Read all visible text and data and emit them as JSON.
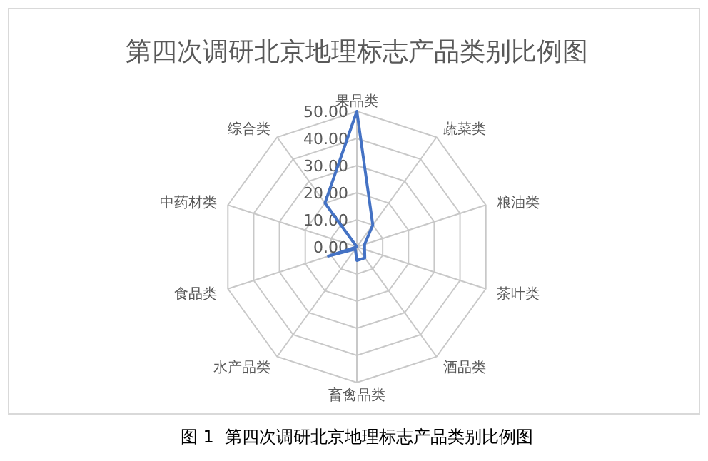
{
  "chart_data": {
    "type": "radar",
    "title": "第四次调研北京地理标志产品类别比例图",
    "categories": [
      "果品类",
      "蔬菜类",
      "粮油类",
      "茶叶类",
      "酒品类",
      "畜禽品类",
      "水产品类",
      "食品类",
      "中药材类",
      "综合类"
    ],
    "series": [
      {
        "color": "#4472c4",
        "values": [
          50,
          10,
          3,
          3,
          5,
          5,
          1,
          11,
          0,
          20
        ]
      }
    ],
    "ylim": [
      0,
      50
    ],
    "yticks": [
      {
        "value": 0,
        "label": "0.00"
      },
      {
        "value": 10,
        "label": "10.00"
      },
      {
        "value": 20,
        "label": "20.00"
      },
      {
        "value": 30,
        "label": "30.00"
      },
      {
        "value": 40,
        "label": "40.00"
      },
      {
        "value": 50,
        "label": "50.00"
      }
    ],
    "grid": true,
    "marker": "none",
    "line_style": "solid",
    "annotations": [
      "图 1  第四次调研北京地理标志产品类别比例图"
    ]
  }
}
